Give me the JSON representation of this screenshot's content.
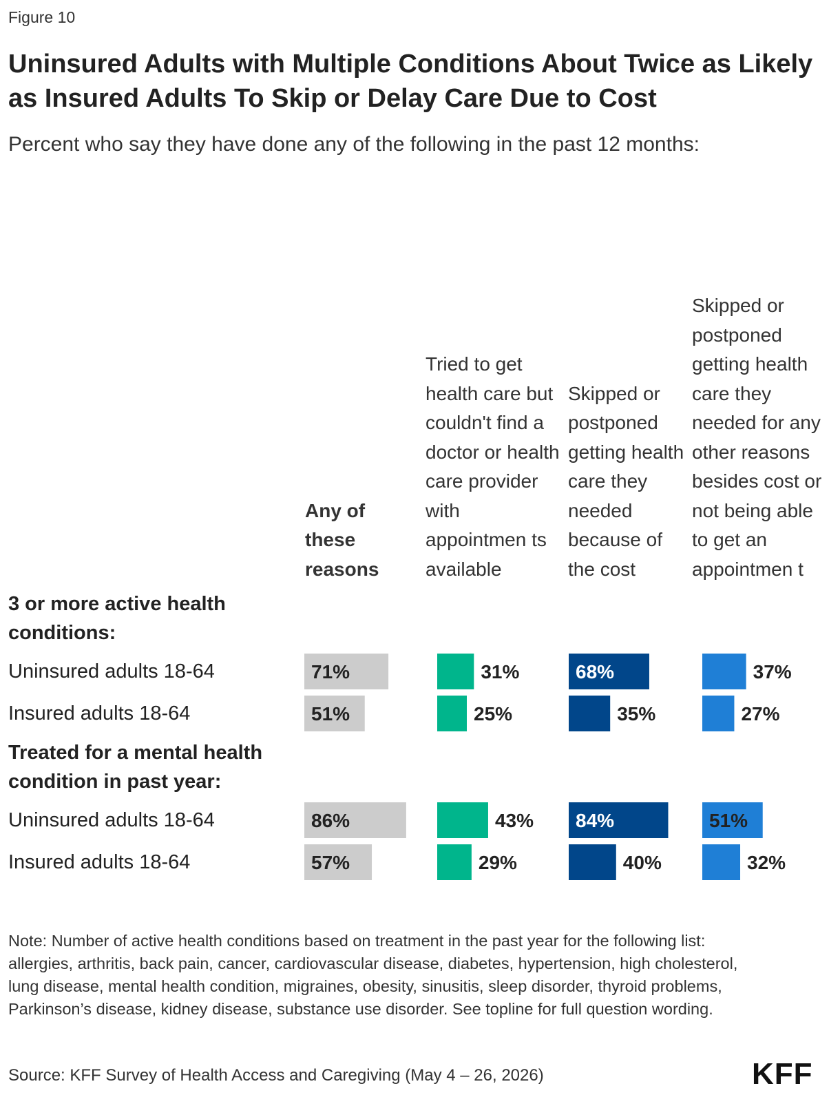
{
  "figure_label": "Figure 10",
  "title": "Uninsured Adults with Multiple Conditions About Twice as Likely as Insured Adults To Skip or Delay Care Due to Cost",
  "subtitle": "Percent who say they have done any of the following in the past 12 months:",
  "columns": [
    {
      "label": "Any of these reasons",
      "color": "#cccccc",
      "label_color": "#222222"
    },
    {
      "label": "Tried to get health care but couldn't find a doctor or health care provider with appointmen ts available",
      "color": "#00b58c",
      "label_color": "#222222"
    },
    {
      "label": "Skipped or postponed getting health care they needed because of the cost",
      "color": "#01468a",
      "label_color": "#ffffff"
    },
    {
      "label": "Skipped or postponed getting health care they needed for any other reasons besides cost or not being able to get an appointmen t",
      "color": "#1f7fd6",
      "label_color": "#222222"
    }
  ],
  "groups": [
    {
      "label": "3 or more active health conditions:",
      "rows": [
        {
          "label": "Uninsured adults 18-64",
          "values_text": [
            "71%",
            "31%",
            "68%",
            "37%"
          ]
        },
        {
          "label": "Insured adults 18-64",
          "values_text": [
            "51%",
            "25%",
            "35%",
            "27%"
          ]
        }
      ]
    },
    {
      "label": "Treated for a mental health condition in past year:",
      "rows": [
        {
          "label": "Uninsured adults 18-64",
          "values_text": [
            "86%",
            "43%",
            "84%",
            "51%"
          ]
        },
        {
          "label": "Insured adults 18-64",
          "values_text": [
            "57%",
            "29%",
            "40%",
            "32%"
          ]
        }
      ]
    }
  ],
  "chart_data": {
    "type": "bar",
    "title": "Uninsured Adults with Multiple Conditions About Twice as Likely as Insured Adults To Skip or Delay Care Due to Cost",
    "subtitle": "Percent who say they have done any of the following in the past 12 months:",
    "categories": [
      "3 or more active health conditions: Uninsured adults 18-64",
      "3 or more active health conditions: Insured adults 18-64",
      "Treated for a mental health condition in past year: Uninsured adults 18-64",
      "Treated for a mental health condition in past year: Insured adults 18-64"
    ],
    "series": [
      {
        "name": "Any of these reasons",
        "values": [
          71,
          51,
          86,
          57
        ]
      },
      {
        "name": "Tried to get health care but couldn't find a doctor or health care provider with appointments available",
        "values": [
          31,
          25,
          43,
          29
        ]
      },
      {
        "name": "Skipped or postponed getting health care they needed because of the cost",
        "values": [
          68,
          35,
          84,
          40
        ]
      },
      {
        "name": "Skipped or postponed getting health care they needed for any other reasons besides cost or not being able to get an appointment",
        "values": [
          37,
          27,
          51,
          32
        ]
      }
    ],
    "ylim": [
      0,
      100
    ],
    "grid": false
  },
  "note": "Note: Number of active health conditions based on treatment in the past year for the following list: allergies, arthritis, back pain, cancer, cardiovascular disease, diabetes, hypertension, high cholesterol, lung disease, mental health condition, migraines, obesity, sinusitis, sleep disorder, thyroid problems, Parkinson’s disease, kidney disease, substance use disorder. See topline for full question wording.",
  "source": "Source: KFF Survey of Health Access and Caregiving (May 4 – 26, 2026)",
  "logo_text": "KFF"
}
